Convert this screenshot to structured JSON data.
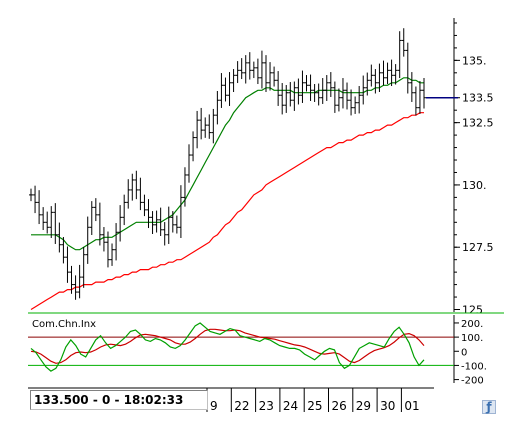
{
  "status": {
    "readout": "133.500 - 0 - 18:02:33"
  },
  "icons": {
    "nav": "zoom-icon"
  },
  "colors": {
    "price": "#000000",
    "ma_green": "#008000",
    "ma_red": "#ff0000",
    "marker": "#000080",
    "osc_red": "#cc0000",
    "osc_green": "#00a000",
    "osc_lines": "#8b0000",
    "osc_frame": "#00b000"
  },
  "chart_data": [
    {
      "type": "line",
      "subtype": "ohlc",
      "title": "",
      "ylim": [
        124.9,
        136.7
      ],
      "y_ticks": [
        "135.",
        "133.5",
        "132.5",
        "130.",
        "127.5",
        "125"
      ],
      "y_tick_values": [
        135,
        133.5,
        132.5,
        130,
        127.5,
        125
      ],
      "last_value_marker": 133.5,
      "x_tick_labels": [
        "9",
        "22",
        "23",
        "24",
        "25",
        "26",
        "29",
        "30",
        "01"
      ],
      "x_tick_positions": [
        48,
        55,
        62,
        69,
        76,
        83,
        90,
        97,
        104
      ],
      "x_range": [
        0,
        110
      ],
      "series": [
        {
          "name": "",
          "role": "price",
          "values": [
            129.6,
            129.3,
            128.8,
            128.5,
            128.3,
            128.9,
            128.0,
            127.6,
            127.1,
            126.5,
            126.0,
            125.7,
            126.3,
            127.2,
            128.3,
            129.1,
            128.8,
            128.0,
            127.7,
            127.0,
            127.4,
            128.1,
            128.7,
            129.3,
            129.8,
            130.2,
            129.8,
            129.3,
            129.0,
            128.7,
            128.4,
            128.6,
            128.2,
            128.0,
            128.7,
            128.4,
            128.3,
            129.5,
            130.4,
            131.2,
            131.9,
            132.6,
            132.2,
            132.4,
            132.1,
            132.8,
            133.4,
            134.0,
            133.6,
            134.1,
            134.4,
            134.6,
            134.5,
            134.9,
            134.6,
            134.7,
            134.3,
            134.9,
            134.1,
            134.5,
            134.2,
            133.6,
            133.2,
            133.7,
            133.4,
            133.9,
            133.6,
            134.1,
            134.0,
            133.8,
            133.7,
            133.5,
            133.8,
            134.1,
            133.9,
            133.2,
            133.5,
            133.8,
            133.4,
            133.1,
            133.3,
            133.6,
            133.9,
            134.2,
            134.4,
            134.1,
            134.5,
            134.3,
            134.6,
            134.4,
            134.6,
            135.8,
            135.4,
            134.1,
            133.7,
            133.1,
            133.8,
            133.5
          ]
        },
        {
          "name": "",
          "role": "moving-average-short",
          "values": [
            128.0,
            128.0,
            128.0,
            128.0,
            128.0,
            128.0,
            128.0,
            127.9,
            127.8,
            127.6,
            127.5,
            127.4,
            127.4,
            127.5,
            127.6,
            127.7,
            127.8,
            127.8,
            127.9,
            127.9,
            127.9,
            128.0,
            128.1,
            128.2,
            128.3,
            128.4,
            128.5,
            128.5,
            128.5,
            128.5,
            128.5,
            128.5,
            128.5,
            128.6,
            128.7,
            128.8,
            129.0,
            129.2,
            129.4,
            129.7,
            130.0,
            130.3,
            130.6,
            130.9,
            131.2,
            131.5,
            131.8,
            132.1,
            132.4,
            132.6,
            132.9,
            133.1,
            133.3,
            133.5,
            133.6,
            133.7,
            133.8,
            133.8,
            133.9,
            133.9,
            133.8,
            133.8,
            133.8,
            133.8,
            133.8,
            133.7,
            133.7,
            133.7,
            133.7,
            133.7,
            133.7,
            133.8,
            133.8,
            133.8,
            133.8,
            133.8,
            133.8,
            133.7,
            133.7,
            133.7,
            133.7,
            133.7,
            133.7,
            133.8,
            133.8,
            133.9,
            133.9,
            134.0,
            134.0,
            134.1,
            134.1,
            134.2,
            134.3,
            134.3,
            134.2,
            134.2,
            134.1,
            134.1
          ]
        },
        {
          "name": "",
          "role": "moving-average-long",
          "values": [
            125.0,
            125.1,
            125.2,
            125.3,
            125.4,
            125.5,
            125.6,
            125.7,
            125.7,
            125.8,
            125.8,
            125.9,
            125.9,
            126.0,
            126.0,
            126.0,
            126.1,
            126.1,
            126.1,
            126.2,
            126.2,
            126.3,
            126.3,
            126.4,
            126.4,
            126.5,
            126.5,
            126.6,
            126.6,
            126.6,
            126.7,
            126.7,
            126.8,
            126.8,
            126.9,
            126.9,
            127.0,
            127.0,
            127.1,
            127.2,
            127.3,
            127.4,
            127.5,
            127.6,
            127.7,
            127.9,
            128.0,
            128.2,
            128.4,
            128.5,
            128.7,
            128.9,
            129.0,
            129.2,
            129.4,
            129.6,
            129.7,
            129.8,
            130.0,
            130.1,
            130.2,
            130.3,
            130.4,
            130.5,
            130.6,
            130.7,
            130.8,
            130.9,
            131.0,
            131.1,
            131.2,
            131.3,
            131.4,
            131.5,
            131.5,
            131.6,
            131.7,
            131.7,
            131.8,
            131.8,
            131.9,
            132.0,
            132.0,
            132.1,
            132.1,
            132.2,
            132.2,
            132.3,
            132.4,
            132.4,
            132.5,
            132.6,
            132.7,
            132.7,
            132.8,
            132.8,
            132.9,
            132.9
          ]
        }
      ]
    },
    {
      "type": "line",
      "title": "Com.Chn.Inx",
      "ylim": [
        -210,
        235
      ],
      "y_ticks": [
        "200.",
        "100.",
        "0",
        "-100.",
        "-200"
      ],
      "y_tick_values": [
        200,
        100,
        0,
        -100,
        -200
      ],
      "ref_lines": [
        100,
        -100
      ],
      "series": [
        {
          "name": "",
          "role": "index",
          "values": [
            20,
            -10,
            -60,
            -110,
            -140,
            -120,
            -60,
            30,
            80,
            40,
            -20,
            -40,
            20,
            80,
            110,
            60,
            20,
            40,
            70,
            100,
            140,
            150,
            120,
            80,
            70,
            90,
            80,
            60,
            30,
            20,
            40,
            80,
            130,
            180,
            200,
            170,
            140,
            130,
            120,
            140,
            160,
            150,
            110,
            100,
            90,
            80,
            70,
            90,
            80,
            60,
            40,
            30,
            20,
            20,
            10,
            -20,
            -40,
            -60,
            -30,
            0,
            20,
            10,
            -80,
            -120,
            -100,
            -40,
            20,
            40,
            60,
            50,
            40,
            30,
            90,
            140,
            170,
            120,
            60,
            -40,
            -100,
            -60
          ]
        },
        {
          "name": "",
          "role": "signal",
          "values": [
            0,
            -5,
            -20,
            -45,
            -70,
            -85,
            -80,
            -60,
            -30,
            -10,
            -5,
            -10,
            -5,
            10,
            30,
            45,
            50,
            45,
            40,
            50,
            70,
            95,
            115,
            120,
            115,
            110,
            100,
            90,
            80,
            60,
            50,
            50,
            65,
            90,
            120,
            145,
            155,
            155,
            150,
            145,
            145,
            150,
            145,
            130,
            120,
            110,
            100,
            95,
            90,
            85,
            75,
            65,
            55,
            45,
            40,
            30,
            15,
            0,
            -15,
            -20,
            -15,
            -10,
            -20,
            -45,
            -70,
            -80,
            -65,
            -40,
            -15,
            5,
            15,
            25,
            40,
            65,
            95,
            120,
            125,
            110,
            80,
            40
          ]
        }
      ]
    }
  ]
}
